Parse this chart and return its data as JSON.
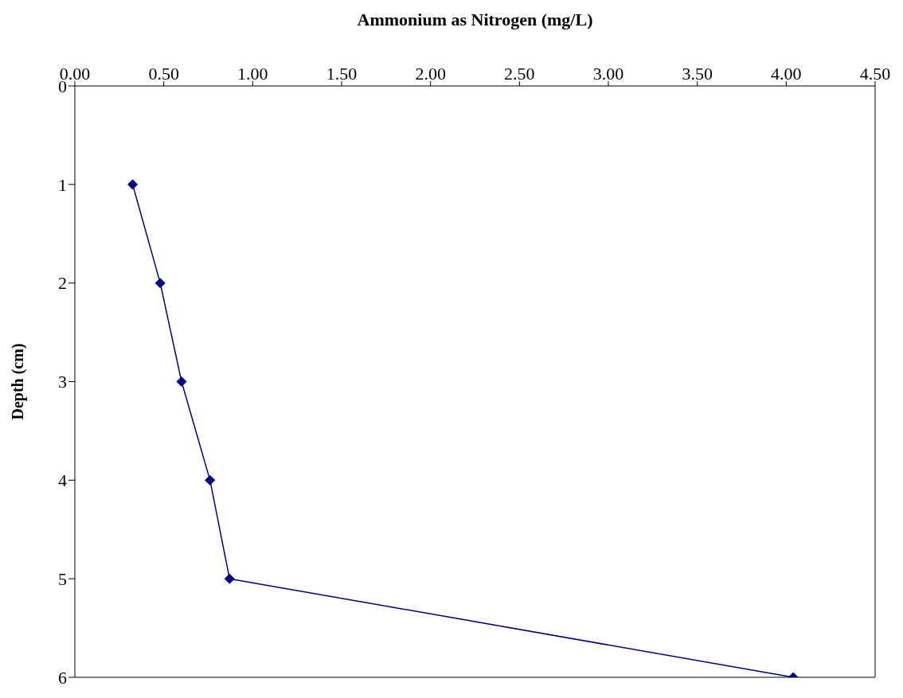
{
  "chart_data": {
    "type": "line",
    "xlabel": "Ammonium as Nitrogen (mg/L)",
    "ylabel": "Depth (cm)",
    "x": [
      0.325,
      0.48,
      0.6,
      0.76,
      0.87,
      4.04
    ],
    "series": [
      {
        "color": "#000080",
        "values": [
          1,
          2,
          3,
          4,
          5,
          6
        ]
      }
    ],
    "xlim": [
      0,
      4.5
    ],
    "xticks": [
      {
        "value": 0,
        "label": "0.00"
      },
      {
        "value": 0.5,
        "label": "0.50"
      },
      {
        "value": 1,
        "label": "1.00"
      },
      {
        "value": 1.5,
        "label": "1.50"
      },
      {
        "value": 2,
        "label": "2.00"
      },
      {
        "value": 2.5,
        "label": "2.50"
      },
      {
        "value": 3,
        "label": "3.00"
      },
      {
        "value": 3.5,
        "label": "3.50"
      },
      {
        "value": 4,
        "label": "4.00"
      },
      {
        "value": 4.5,
        "label": "4.50"
      }
    ],
    "ylim": [
      6,
      0
    ],
    "yticks": [
      0,
      1,
      2,
      3,
      4,
      5,
      6
    ],
    "grid": false,
    "marker": "diamond",
    "line_style": "solid"
  }
}
